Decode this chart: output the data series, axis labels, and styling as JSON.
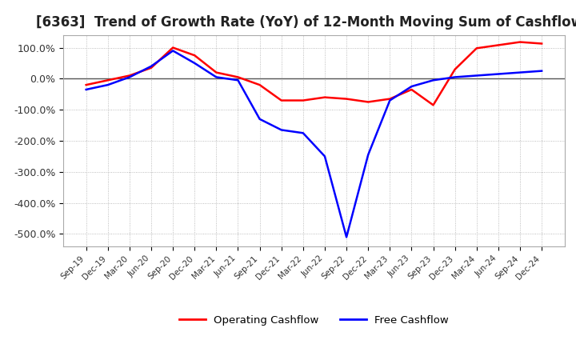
{
  "title": "[6363]  Trend of Growth Rate (YoY) of 12-Month Moving Sum of Cashflows",
  "title_fontsize": 12,
  "ylim": [
    -540,
    140
  ],
  "yticks": [
    100,
    0,
    -100,
    -200,
    -300,
    -400,
    -500
  ],
  "ytick_labels": [
    "100.0%",
    "0.0%",
    "-100.0%",
    "-200.0%",
    "-300.0%",
    "-400.0%",
    "-500.0%"
  ],
  "legend_labels": [
    "Operating Cashflow",
    "Free Cashflow"
  ],
  "legend_colors": [
    "red",
    "blue"
  ],
  "x_labels": [
    "Sep-19",
    "Dec-19",
    "Mar-20",
    "Jun-20",
    "Sep-20",
    "Dec-20",
    "Mar-21",
    "Jun-21",
    "Sep-21",
    "Dec-21",
    "Mar-22",
    "Jun-22",
    "Sep-22",
    "Dec-22",
    "Mar-23",
    "Jun-23",
    "Sep-23",
    "Dec-23",
    "Mar-24",
    "Jun-24",
    "Sep-24",
    "Dec-24"
  ],
  "operating_cashflow": [
    -20,
    -5,
    10,
    35,
    100,
    75,
    20,
    5,
    -20,
    -70,
    -70,
    -60,
    -65,
    -75,
    -65,
    -35,
    -85,
    30,
    98,
    108,
    118,
    113
  ],
  "free_cashflow": [
    -35,
    -20,
    5,
    40,
    90,
    50,
    5,
    -5,
    -130,
    -165,
    -175,
    -250,
    -510,
    -245,
    -70,
    -25,
    -5,
    5,
    10,
    15,
    20,
    25
  ]
}
